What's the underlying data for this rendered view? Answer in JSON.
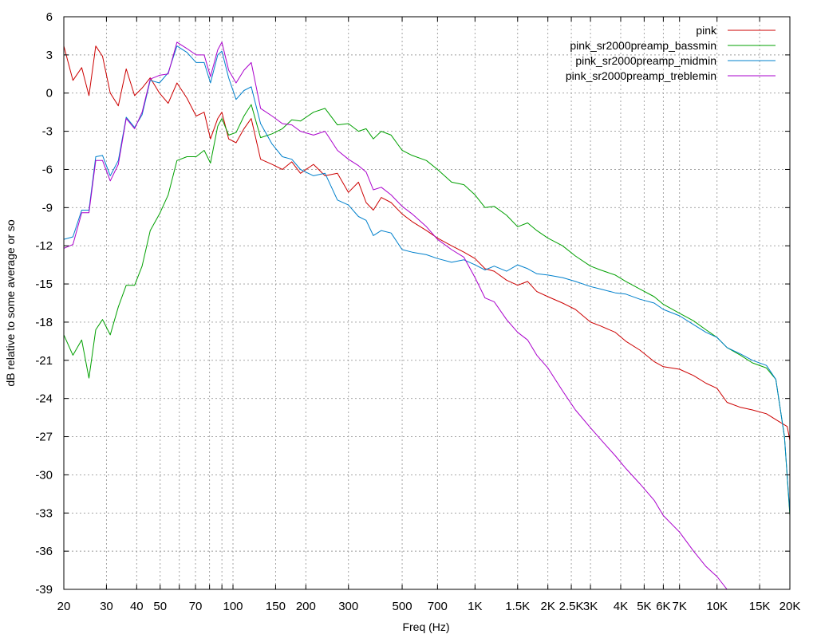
{
  "chart_data": {
    "type": "line",
    "title": "",
    "xlabel": "Freq (Hz)",
    "ylabel": "dB relative to some average or so",
    "xscale": "log",
    "xlim": [
      20,
      20000
    ],
    "ylim": [
      -39,
      6
    ],
    "grid": true,
    "legend_position": "top-right",
    "x_ticks": [
      {
        "v": 20,
        "label": "20"
      },
      {
        "v": 30,
        "label": "30"
      },
      {
        "v": 40,
        "label": "40"
      },
      {
        "v": 50,
        "label": "50"
      },
      {
        "v": 70,
        "label": "70"
      },
      {
        "v": 100,
        "label": "100"
      },
      {
        "v": 150,
        "label": "150"
      },
      {
        "v": 200,
        "label": "200"
      },
      {
        "v": 300,
        "label": "300"
      },
      {
        "v": 500,
        "label": "500"
      },
      {
        "v": 700,
        "label": "700"
      },
      {
        "v": 1000,
        "label": "1K"
      },
      {
        "v": 1500,
        "label": "1.5K"
      },
      {
        "v": 2000,
        "label": "2K"
      },
      {
        "v": 2500,
        "label": "2.5K"
      },
      {
        "v": 3000,
        "label": "3K"
      },
      {
        "v": 4000,
        "label": "4K"
      },
      {
        "v": 5000,
        "label": "5K"
      },
      {
        "v": 6000,
        "label": "6K"
      },
      {
        "v": 7000,
        "label": "7K"
      },
      {
        "v": 10000,
        "label": "10K"
      },
      {
        "v": 15000,
        "label": "15K"
      },
      {
        "v": 20000,
        "label": "20K"
      }
    ],
    "y_ticks": [
      6,
      3,
      0,
      -3,
      -6,
      -9,
      -12,
      -15,
      -18,
      -21,
      -24,
      -27,
      -30,
      -33,
      -36,
      -39
    ],
    "x_grid_minor": [
      60,
      80,
      90
    ],
    "series": [
      {
        "name": "pink",
        "color": "#cc0000",
        "points": [
          [
            20,
            3.7
          ],
          [
            21.8,
            1.0
          ],
          [
            23.7,
            2.0
          ],
          [
            25.4,
            -0.2
          ],
          [
            27.1,
            3.7
          ],
          [
            28.9,
            2.9
          ],
          [
            31.1,
            0.0
          ],
          [
            33.6,
            -1.0
          ],
          [
            36.2,
            1.9
          ],
          [
            39.2,
            -0.2
          ],
          [
            42.1,
            0.4
          ],
          [
            45.5,
            1.2
          ],
          [
            49.7,
            0.0
          ],
          [
            54.0,
            -0.8
          ],
          [
            58.7,
            0.8
          ],
          [
            64.5,
            -0.4
          ],
          [
            70.4,
            -1.8
          ],
          [
            76.0,
            -1.5
          ],
          [
            80.7,
            -3.6
          ],
          [
            86.5,
            -2.0
          ],
          [
            90.0,
            -1.5
          ],
          [
            96.0,
            -3.6
          ],
          [
            103.0,
            -3.9
          ],
          [
            111.0,
            -2.8
          ],
          [
            119.0,
            -2.0
          ],
          [
            130.0,
            -5.2
          ],
          [
            145.0,
            -5.6
          ],
          [
            160.0,
            -6.0
          ],
          [
            175.0,
            -5.4
          ],
          [
            190.0,
            -6.3
          ],
          [
            215.0,
            -5.6
          ],
          [
            240.0,
            -6.5
          ],
          [
            270.0,
            -6.3
          ],
          [
            300.0,
            -7.8
          ],
          [
            330.0,
            -7.0
          ],
          [
            355.0,
            -8.6
          ],
          [
            380.0,
            -9.2
          ],
          [
            410.0,
            -8.2
          ],
          [
            450.0,
            -8.6
          ],
          [
            500.0,
            -9.5
          ],
          [
            550.0,
            -10.1
          ],
          [
            630.0,
            -10.8
          ],
          [
            700.0,
            -11.4
          ],
          [
            800.0,
            -12.0
          ],
          [
            900.0,
            -12.5
          ],
          [
            1000.0,
            -13.0
          ],
          [
            1100.0,
            -13.8
          ],
          [
            1200.0,
            -14.0
          ],
          [
            1350.0,
            -14.7
          ],
          [
            1500.0,
            -15.1
          ],
          [
            1650.0,
            -14.8
          ],
          [
            1800.0,
            -15.6
          ],
          [
            2000.0,
            -16.0
          ],
          [
            2300.0,
            -16.5
          ],
          [
            2600.0,
            -17.0
          ],
          [
            3000.0,
            -18.0
          ],
          [
            3300.0,
            -18.3
          ],
          [
            3800.0,
            -18.8
          ],
          [
            4200.0,
            -19.5
          ],
          [
            4800.0,
            -20.2
          ],
          [
            5500.0,
            -21.1
          ],
          [
            6000.0,
            -21.5
          ],
          [
            7000.0,
            -21.7
          ],
          [
            8000.0,
            -22.2
          ],
          [
            9000.0,
            -22.8
          ],
          [
            10000.0,
            -23.2
          ],
          [
            11000.0,
            -24.3
          ],
          [
            12500.0,
            -24.7
          ],
          [
            14000.0,
            -24.9
          ],
          [
            16000.0,
            -25.2
          ],
          [
            18000.0,
            -25.8
          ],
          [
            19500.0,
            -26.2
          ],
          [
            20000.0,
            -27.3
          ]
        ]
      },
      {
        "name": "pink_sr2000preamp_bassmin",
        "color": "#00a000",
        "points": [
          [
            20,
            -19.0
          ],
          [
            21.8,
            -20.6
          ],
          [
            23.7,
            -19.4
          ],
          [
            25.4,
            -22.4
          ],
          [
            27.1,
            -18.6
          ],
          [
            28.9,
            -17.8
          ],
          [
            31.1,
            -19.0
          ],
          [
            33.6,
            -16.8
          ],
          [
            36.2,
            -15.1
          ],
          [
            39.2,
            -15.1
          ],
          [
            42.1,
            -13.6
          ],
          [
            45.5,
            -10.8
          ],
          [
            49.7,
            -9.5
          ],
          [
            54.0,
            -8.0
          ],
          [
            58.7,
            -5.3
          ],
          [
            64.5,
            -5.0
          ],
          [
            70.4,
            -5.0
          ],
          [
            76.0,
            -4.5
          ],
          [
            80.7,
            -5.5
          ],
          [
            86.5,
            -2.6
          ],
          [
            90.0,
            -2.0
          ],
          [
            96.0,
            -3.3
          ],
          [
            103.0,
            -3.1
          ],
          [
            111.0,
            -1.8
          ],
          [
            119.0,
            -0.9
          ],
          [
            130.0,
            -3.5
          ],
          [
            145.0,
            -3.2
          ],
          [
            160.0,
            -2.8
          ],
          [
            175.0,
            -2.1
          ],
          [
            190.0,
            -2.2
          ],
          [
            215.0,
            -1.5
          ],
          [
            240.0,
            -1.2
          ],
          [
            270.0,
            -2.5
          ],
          [
            300.0,
            -2.4
          ],
          [
            330.0,
            -3.0
          ],
          [
            355.0,
            -2.8
          ],
          [
            380.0,
            -3.6
          ],
          [
            410.0,
            -3.0
          ],
          [
            450.0,
            -3.3
          ],
          [
            500.0,
            -4.5
          ],
          [
            550.0,
            -4.9
          ],
          [
            630.0,
            -5.3
          ],
          [
            700.0,
            -6.0
          ],
          [
            800.0,
            -7.0
          ],
          [
            900.0,
            -7.2
          ],
          [
            1000.0,
            -8.0
          ],
          [
            1100.0,
            -9.0
          ],
          [
            1200.0,
            -8.9
          ],
          [
            1350.0,
            -9.6
          ],
          [
            1500.0,
            -10.5
          ],
          [
            1650.0,
            -10.2
          ],
          [
            1800.0,
            -10.8
          ],
          [
            2000.0,
            -11.4
          ],
          [
            2300.0,
            -12.0
          ],
          [
            2600.0,
            -12.8
          ],
          [
            3000.0,
            -13.6
          ],
          [
            3300.0,
            -13.9
          ],
          [
            3800.0,
            -14.3
          ],
          [
            4200.0,
            -14.8
          ],
          [
            4800.0,
            -15.4
          ],
          [
            5500.0,
            -16.0
          ],
          [
            6000.0,
            -16.6
          ],
          [
            7000.0,
            -17.3
          ],
          [
            8000.0,
            -17.9
          ],
          [
            9000.0,
            -18.6
          ],
          [
            10000.0,
            -19.2
          ],
          [
            11000.0,
            -20.0
          ],
          [
            12500.0,
            -20.6
          ],
          [
            14000.0,
            -21.2
          ],
          [
            16000.0,
            -21.6
          ],
          [
            17500.0,
            -22.5
          ],
          [
            19000.0,
            -27.0
          ],
          [
            20000.0,
            -33.2
          ]
        ]
      },
      {
        "name": "pink_sr2000preamp_midmin",
        "color": "#0080cc",
        "points": [
          [
            20,
            -11.5
          ],
          [
            21.8,
            -11.3
          ],
          [
            23.7,
            -9.2
          ],
          [
            25.4,
            -9.2
          ],
          [
            27.1,
            -5.0
          ],
          [
            28.9,
            -4.9
          ],
          [
            31.1,
            -6.5
          ],
          [
            33.6,
            -5.3
          ],
          [
            36.2,
            -1.9
          ],
          [
            39.2,
            -2.7
          ],
          [
            42.1,
            -1.7
          ],
          [
            45.5,
            1.0
          ],
          [
            49.7,
            0.8
          ],
          [
            54.0,
            1.6
          ],
          [
            58.7,
            3.7
          ],
          [
            64.5,
            3.2
          ],
          [
            70.4,
            2.4
          ],
          [
            76.0,
            2.4
          ],
          [
            80.7,
            0.8
          ],
          [
            86.5,
            3.0
          ],
          [
            90.0,
            3.3
          ],
          [
            96.0,
            1.2
          ],
          [
            103.0,
            -0.5
          ],
          [
            111.0,
            0.2
          ],
          [
            119.0,
            0.5
          ],
          [
            130.0,
            -2.4
          ],
          [
            145.0,
            -4.0
          ],
          [
            160.0,
            -5.0
          ],
          [
            175.0,
            -5.2
          ],
          [
            190.0,
            -6.0
          ],
          [
            215.0,
            -6.5
          ],
          [
            240.0,
            -6.3
          ],
          [
            270.0,
            -8.4
          ],
          [
            300.0,
            -8.8
          ],
          [
            330.0,
            -9.7
          ],
          [
            355.0,
            -10.0
          ],
          [
            380.0,
            -11.2
          ],
          [
            410.0,
            -10.8
          ],
          [
            450.0,
            -11.0
          ],
          [
            500.0,
            -12.3
          ],
          [
            550.0,
            -12.5
          ],
          [
            630.0,
            -12.7
          ],
          [
            700.0,
            -13.0
          ],
          [
            800.0,
            -13.3
          ],
          [
            900.0,
            -13.1
          ],
          [
            1000.0,
            -13.5
          ],
          [
            1100.0,
            -13.9
          ],
          [
            1200.0,
            -13.6
          ],
          [
            1350.0,
            -14.0
          ],
          [
            1500.0,
            -13.5
          ],
          [
            1650.0,
            -13.8
          ],
          [
            1800.0,
            -14.2
          ],
          [
            2000.0,
            -14.3
          ],
          [
            2300.0,
            -14.5
          ],
          [
            2600.0,
            -14.8
          ],
          [
            3000.0,
            -15.2
          ],
          [
            3300.0,
            -15.4
          ],
          [
            3800.0,
            -15.7
          ],
          [
            4200.0,
            -15.8
          ],
          [
            4800.0,
            -16.2
          ],
          [
            5500.0,
            -16.5
          ],
          [
            6000.0,
            -17.0
          ],
          [
            7000.0,
            -17.5
          ],
          [
            8000.0,
            -18.2
          ],
          [
            9000.0,
            -18.8
          ],
          [
            10000.0,
            -19.2
          ],
          [
            11000.0,
            -20.0
          ],
          [
            12500.0,
            -20.5
          ],
          [
            14000.0,
            -21.0
          ],
          [
            16000.0,
            -21.4
          ],
          [
            17500.0,
            -22.5
          ],
          [
            19000.0,
            -27.0
          ],
          [
            20000.0,
            -33.0
          ]
        ]
      },
      {
        "name": "pink_sr2000preamp_treblemin",
        "color": "#aa00cc",
        "points": [
          [
            20,
            -12.2
          ],
          [
            21.8,
            -11.9
          ],
          [
            23.7,
            -9.4
          ],
          [
            25.4,
            -9.4
          ],
          [
            27.1,
            -5.3
          ],
          [
            28.9,
            -5.3
          ],
          [
            31.1,
            -6.9
          ],
          [
            33.6,
            -5.6
          ],
          [
            36.2,
            -2.0
          ],
          [
            39.2,
            -2.8
          ],
          [
            42.1,
            -1.5
          ],
          [
            45.5,
            1.1
          ],
          [
            49.7,
            1.4
          ],
          [
            54.0,
            1.5
          ],
          [
            58.7,
            4.0
          ],
          [
            64.5,
            3.5
          ],
          [
            70.4,
            3.0
          ],
          [
            76.0,
            3.0
          ],
          [
            80.7,
            1.3
          ],
          [
            86.5,
            3.4
          ],
          [
            90.0,
            4.0
          ],
          [
            96.0,
            1.8
          ],
          [
            103.0,
            0.8
          ],
          [
            111.0,
            1.8
          ],
          [
            119.0,
            2.4
          ],
          [
            130.0,
            -1.2
          ],
          [
            145.0,
            -1.8
          ],
          [
            160.0,
            -2.4
          ],
          [
            175.0,
            -2.5
          ],
          [
            190.0,
            -3.0
          ],
          [
            215.0,
            -3.3
          ],
          [
            240.0,
            -3.0
          ],
          [
            270.0,
            -4.5
          ],
          [
            300.0,
            -5.2
          ],
          [
            330.0,
            -5.7
          ],
          [
            355.0,
            -6.2
          ],
          [
            380.0,
            -7.6
          ],
          [
            410.0,
            -7.4
          ],
          [
            450.0,
            -8.0
          ],
          [
            500.0,
            -8.9
          ],
          [
            550.0,
            -9.5
          ],
          [
            630.0,
            -10.5
          ],
          [
            700.0,
            -11.5
          ],
          [
            800.0,
            -12.3
          ],
          [
            900.0,
            -12.9
          ],
          [
            1000.0,
            -14.5
          ],
          [
            1100.0,
            -16.1
          ],
          [
            1200.0,
            -16.4
          ],
          [
            1350.0,
            -17.8
          ],
          [
            1500.0,
            -18.8
          ],
          [
            1650.0,
            -19.4
          ],
          [
            1800.0,
            -20.6
          ],
          [
            2000.0,
            -21.6
          ],
          [
            2300.0,
            -23.4
          ],
          [
            2600.0,
            -24.9
          ],
          [
            3000.0,
            -26.3
          ],
          [
            3300.0,
            -27.2
          ],
          [
            3800.0,
            -28.5
          ],
          [
            4200.0,
            -29.5
          ],
          [
            4800.0,
            -30.7
          ],
          [
            5500.0,
            -32.0
          ],
          [
            6000.0,
            -33.2
          ],
          [
            7000.0,
            -34.5
          ],
          [
            8000.0,
            -36.0
          ],
          [
            9000.0,
            -37.2
          ],
          [
            10000.0,
            -38.0
          ],
          [
            11000.0,
            -39.0
          ]
        ]
      }
    ]
  }
}
